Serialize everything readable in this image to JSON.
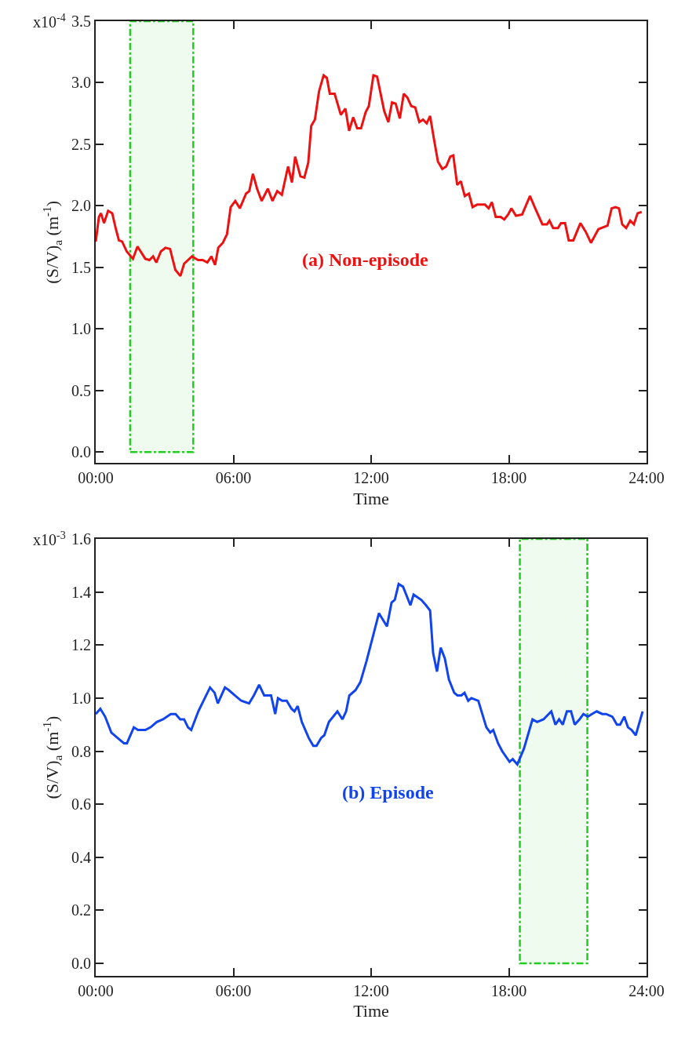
{
  "chart_data": [
    {
      "type": "line",
      "xlabel": "Time",
      "ylabel": "(S/V)$_{a}$ (m$^{-1}$)",
      "annotations": [
        "(a) Non-episode",
        "x10$^{-4}$"
      ],
      "x": [
        0,
        0.14,
        0.23,
        0.36,
        0.54,
        0.72,
        0.88,
        1.01,
        1.15,
        1.35,
        1.62,
        1.82,
        2.16,
        2.34,
        2.5,
        2.64,
        2.84,
        3.04,
        3.24,
        3.47,
        3.69,
        3.85,
        4.19,
        4.46,
        4.66,
        4.86,
        5.04,
        5.2,
        5.34,
        5.54,
        5.72,
        5.88,
        6.08,
        6.28,
        6.55,
        6.69,
        6.85,
        7.03,
        7.23,
        7.5,
        7.7,
        7.91,
        8.11,
        8.38,
        8.55,
        8.69,
        8.92,
        9.09,
        9.26,
        9.39,
        9.55,
        9.73,
        9.93,
        10.07,
        10.2,
        10.41,
        10.68,
        10.88,
        11.04,
        11.22,
        11.39,
        11.56,
        11.76,
        11.9,
        12.1,
        12.26,
        12.57,
        12.75,
        12.91,
        13.07,
        13.25,
        13.42,
        13.58,
        13.75,
        13.92,
        14.1,
        14.26,
        14.42,
        14.57,
        14.73,
        14.91,
        15.1,
        15.27,
        15.45,
        15.58,
        15.75,
        15.91,
        16.08,
        16.26,
        16.42,
        16.62,
        16.96,
        17.12,
        17.26,
        17.43,
        17.64,
        17.8,
        17.97,
        18.11,
        18.31,
        18.58,
        18.92,
        19.15,
        19.46,
        19.66,
        19.77,
        19.93,
        20.14,
        20.27,
        20.45,
        20.61,
        20.81,
        21.12,
        21.35,
        21.58,
        21.9,
        22.03,
        22.3,
        22.48,
        22.64,
        22.8,
        22.94,
        23.11,
        23.29,
        23.45,
        23.61,
        23.79
      ],
      "series": [
        {
          "color": "#ee1111",
          "values": [
            1.71,
            1.91,
            1.94,
            1.86,
            1.96,
            1.94,
            1.81,
            1.72,
            1.71,
            1.63,
            1.57,
            1.67,
            1.57,
            1.56,
            1.59,
            1.54,
            1.63,
            1.66,
            1.65,
            1.48,
            1.43,
            1.53,
            1.59,
            1.56,
            1.56,
            1.54,
            1.59,
            1.52,
            1.66,
            1.7,
            1.77,
            1.99,
            2.04,
            1.98,
            2.1,
            2.12,
            2.26,
            2.14,
            2.04,
            2.14,
            2.04,
            2.12,
            2.09,
            2.32,
            2.19,
            2.4,
            2.24,
            2.23,
            2.35,
            2.65,
            2.7,
            2.93,
            3.06,
            3.04,
            2.91,
            2.91,
            2.74,
            2.79,
            2.61,
            2.72,
            2.63,
            2.63,
            2.76,
            2.81,
            3.06,
            3.05,
            2.77,
            2.68,
            2.84,
            2.83,
            2.71,
            2.91,
            2.88,
            2.81,
            2.8,
            2.68,
            2.7,
            2.67,
            2.73,
            2.55,
            2.36,
            2.3,
            2.32,
            2.4,
            2.41,
            2.17,
            2.2,
            2.08,
            2.1,
            1.99,
            2.01,
            2.01,
            1.98,
            2.03,
            1.91,
            1.91,
            1.89,
            1.93,
            1.98,
            1.92,
            1.93,
            2.08,
            1.98,
            1.85,
            1.85,
            1.88,
            1.82,
            1.82,
            1.86,
            1.86,
            1.72,
            1.72,
            1.86,
            1.79,
            1.7,
            1.81,
            1.82,
            1.84,
            1.98,
            1.99,
            1.98,
            1.85,
            1.82,
            1.88,
            1.85,
            1.94,
            1.95
          ]
        }
      ],
      "xlim": [
        0,
        24
      ],
      "xticks": [
        {
          "value": 0,
          "label": "00:00"
        },
        {
          "value": 6,
          "label": "06:00"
        },
        {
          "value": 12,
          "label": "12:00"
        },
        {
          "value": 18,
          "label": "18:00"
        },
        {
          "value": 24,
          "label": "24:00"
        }
      ],
      "ylim": [
        -0.09,
        3.5
      ],
      "yticks": [
        {
          "value": 0,
          "label": "0.0"
        },
        {
          "value": 0.5,
          "label": "0.5"
        },
        {
          "value": 1,
          "label": "1.0"
        },
        {
          "value": 1.5,
          "label": "1.5"
        },
        {
          "value": 2,
          "label": "2.0"
        },
        {
          "value": 2.5,
          "label": "2.5"
        },
        {
          "value": 3,
          "label": "3.0"
        },
        {
          "value": 3.5,
          "label": "3.5"
        }
      ],
      "bands": [
        {
          "axis": "x",
          "from": 1.5,
          "to": 4.25,
          "color": "#22cc22"
        }
      ]
    },
    {
      "type": "line",
      "xlabel": "Time",
      "ylabel": "(S/V)$_{a}$ (m$^{-1}$)",
      "annotations": [
        "(b) Episode",
        "x10$^{-3}$"
      ],
      "x": [
        0,
        0.2,
        0.41,
        0.68,
        0.95,
        1.23,
        1.36,
        1.66,
        1.84,
        1.98,
        2.16,
        2.39,
        2.66,
        2.93,
        3.27,
        3.48,
        3.68,
        3.85,
        4.02,
        4.16,
        4.47,
        4.64,
        4.98,
        5.18,
        5.32,
        5.63,
        5.8,
        6.07,
        6.34,
        6.68,
        6.89,
        7.12,
        7.34,
        7.64,
        7.82,
        7.94,
        8.12,
        8.32,
        8.53,
        8.66,
        8.8,
        8.98,
        9.28,
        9.48,
        9.62,
        9.82,
        9.96,
        10.16,
        10.53,
        10.75,
        10.91,
        11.05,
        11.32,
        11.53,
        11.8,
        12.07,
        12.34,
        12.69,
        12.89,
        13.03,
        13.2,
        13.39,
        13.71,
        13.85,
        14.19,
        14.39,
        14.57,
        14.7,
        14.87,
        15.03,
        15.21,
        15.39,
        15.62,
        15.76,
        15.93,
        16.07,
        16.23,
        16.37,
        16.67,
        17.02,
        17.19,
        17.32,
        17.53,
        17.71,
        18.03,
        18.17,
        18.37,
        18.66,
        19.03,
        19.23,
        19.51,
        19.85,
        20.03,
        20.19,
        20.35,
        20.53,
        20.71,
        20.87,
        21.08,
        21.25,
        21.44,
        21.62,
        21.83,
        22.07,
        22.24,
        22.51,
        22.71,
        22.85,
        23.03,
        23.19,
        23.35,
        23.53,
        23.83
      ],
      "series": [
        {
          "color": "#1144ee",
          "values": [
            0.94,
            0.96,
            0.93,
            0.87,
            0.85,
            0.83,
            0.83,
            0.89,
            0.88,
            0.88,
            0.88,
            0.89,
            0.91,
            0.92,
            0.94,
            0.94,
            0.92,
            0.92,
            0.89,
            0.88,
            0.95,
            0.98,
            1.04,
            1.02,
            0.98,
            1.04,
            1.03,
            1.01,
            0.99,
            0.98,
            1.01,
            1.05,
            1.01,
            1.01,
            0.94,
            1.0,
            0.99,
            0.99,
            0.96,
            0.95,
            0.97,
            0.91,
            0.85,
            0.82,
            0.82,
            0.85,
            0.86,
            0.91,
            0.95,
            0.92,
            0.95,
            1.01,
            1.03,
            1.06,
            1.14,
            1.23,
            1.32,
            1.27,
            1.36,
            1.37,
            1.43,
            1.42,
            1.35,
            1.39,
            1.37,
            1.35,
            1.33,
            1.17,
            1.1,
            1.19,
            1.15,
            1.07,
            1.02,
            1.01,
            1.01,
            1.02,
            0.99,
            1.0,
            0.99,
            0.89,
            0.87,
            0.88,
            0.83,
            0.8,
            0.76,
            0.77,
            0.75,
            0.81,
            0.92,
            0.91,
            0.92,
            0.95,
            0.9,
            0.92,
            0.9,
            0.95,
            0.95,
            0.9,
            0.92,
            0.94,
            0.93,
            0.94,
            0.95,
            0.94,
            0.94,
            0.93,
            0.9,
            0.9,
            0.93,
            0.89,
            0.88,
            0.86,
            0.95
          ]
        }
      ],
      "xlim": [
        0,
        24
      ],
      "xticks": [
        {
          "value": 0,
          "label": "00:00"
        },
        {
          "value": 6,
          "label": "06:00"
        },
        {
          "value": 12,
          "label": "12:00"
        },
        {
          "value": 18,
          "label": "18:00"
        },
        {
          "value": 24,
          "label": "24:00"
        }
      ],
      "ylim": [
        -0.047,
        1.6
      ],
      "yticks": [
        {
          "value": 0,
          "label": "0.0"
        },
        {
          "value": 0.2,
          "label": "0.2"
        },
        {
          "value": 0.4,
          "label": "0.4"
        },
        {
          "value": 0.6,
          "label": "0.6"
        },
        {
          "value": 0.8,
          "label": "0.8"
        },
        {
          "value": 1,
          "label": "1.0"
        },
        {
          "value": 1.2,
          "label": "1.2"
        },
        {
          "value": 1.4,
          "label": "1.4"
        },
        {
          "value": 1.6,
          "label": "1.6"
        }
      ],
      "bands": [
        {
          "axis": "x",
          "from": 18.48,
          "to": 21.42,
          "color": "#22cc22"
        }
      ]
    }
  ]
}
